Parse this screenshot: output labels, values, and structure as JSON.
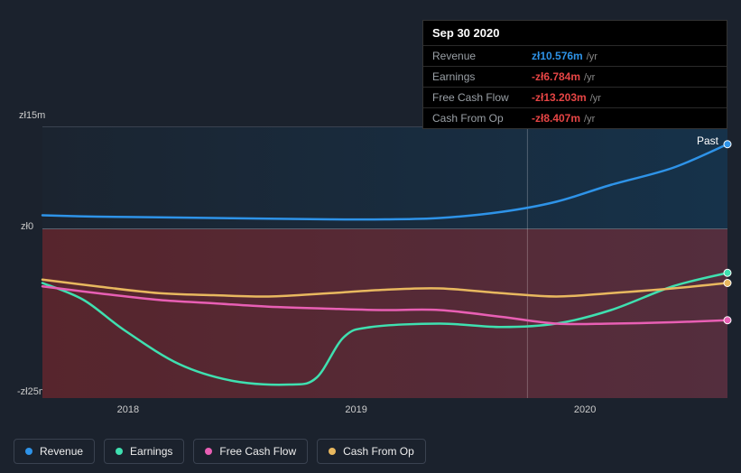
{
  "tooltip": {
    "date": "Sep 30 2020",
    "rows": [
      {
        "label": "Revenue",
        "value": "zł10.576m",
        "unit": "/yr",
        "color": "#2e93e8"
      },
      {
        "label": "Earnings",
        "value": "-zł6.784m",
        "unit": "/yr",
        "color": "#e64545"
      },
      {
        "label": "Free Cash Flow",
        "value": "-zł13.203m",
        "unit": "/yr",
        "color": "#e64545"
      },
      {
        "label": "Cash From Op",
        "value": "-zł8.407m",
        "unit": "/yr",
        "color": "#e64545"
      }
    ]
  },
  "chart": {
    "type": "line",
    "y_axis": {
      "max_label": "zł15m",
      "zero_label": "zł0",
      "min_label": "-zł25m",
      "max": 15,
      "zero": 0,
      "min": -25
    },
    "x_axis": {
      "ticks": [
        {
          "label": "2018",
          "pos": 0.125
        },
        {
          "label": "2019",
          "pos": 0.458
        },
        {
          "label": "2020",
          "pos": 0.792
        }
      ]
    },
    "past_label": "Past",
    "cursor_x": 0.708,
    "background_gradient_past": [
      "#1b2430",
      "#16324a"
    ],
    "negative_fill": "rgba(200,40,40,0.35)",
    "line_width": 2.5,
    "series": [
      {
        "name": "Revenue",
        "color": "#2e93e8",
        "points": [
          [
            0.0,
            2.0
          ],
          [
            0.08,
            1.8
          ],
          [
            0.17,
            1.7
          ],
          [
            0.25,
            1.6
          ],
          [
            0.33,
            1.5
          ],
          [
            0.42,
            1.4
          ],
          [
            0.5,
            1.4
          ],
          [
            0.58,
            1.6
          ],
          [
            0.67,
            2.5
          ],
          [
            0.75,
            4.0
          ],
          [
            0.83,
            6.5
          ],
          [
            0.92,
            9.0
          ],
          [
            1.0,
            12.5
          ]
        ]
      },
      {
        "name": "Earnings",
        "color": "#3fe0b0",
        "points": [
          [
            0.0,
            -8.0
          ],
          [
            0.06,
            -10.5
          ],
          [
            0.12,
            -15.0
          ],
          [
            0.2,
            -20.0
          ],
          [
            0.28,
            -22.5
          ],
          [
            0.36,
            -23.0
          ],
          [
            0.4,
            -22.0
          ],
          [
            0.44,
            -16.0
          ],
          [
            0.48,
            -14.5
          ],
          [
            0.58,
            -14.0
          ],
          [
            0.67,
            -14.5
          ],
          [
            0.75,
            -14.0
          ],
          [
            0.83,
            -12.0
          ],
          [
            0.92,
            -8.5
          ],
          [
            1.0,
            -6.5
          ]
        ]
      },
      {
        "name": "Free Cash Flow",
        "color": "#e85fb4",
        "points": [
          [
            0.0,
            -8.5
          ],
          [
            0.08,
            -9.5
          ],
          [
            0.17,
            -10.5
          ],
          [
            0.25,
            -11.0
          ],
          [
            0.33,
            -11.5
          ],
          [
            0.42,
            -11.8
          ],
          [
            0.5,
            -12.0
          ],
          [
            0.58,
            -12.0
          ],
          [
            0.67,
            -13.0
          ],
          [
            0.75,
            -14.0
          ],
          [
            0.83,
            -14.0
          ],
          [
            0.92,
            -13.8
          ],
          [
            1.0,
            -13.5
          ]
        ]
      },
      {
        "name": "Cash From Op",
        "color": "#e8b85f",
        "points": [
          [
            0.0,
            -7.5
          ],
          [
            0.08,
            -8.5
          ],
          [
            0.17,
            -9.5
          ],
          [
            0.25,
            -9.8
          ],
          [
            0.33,
            -10.0
          ],
          [
            0.42,
            -9.5
          ],
          [
            0.5,
            -9.0
          ],
          [
            0.58,
            -8.8
          ],
          [
            0.67,
            -9.5
          ],
          [
            0.75,
            -10.0
          ],
          [
            0.83,
            -9.5
          ],
          [
            0.92,
            -8.8
          ],
          [
            1.0,
            -8.0
          ]
        ]
      }
    ]
  },
  "legend": [
    {
      "label": "Revenue",
      "color": "#2e93e8"
    },
    {
      "label": "Earnings",
      "color": "#3fe0b0"
    },
    {
      "label": "Free Cash Flow",
      "color": "#e85fb4"
    },
    {
      "label": "Cash From Op",
      "color": "#e8b85f"
    }
  ]
}
